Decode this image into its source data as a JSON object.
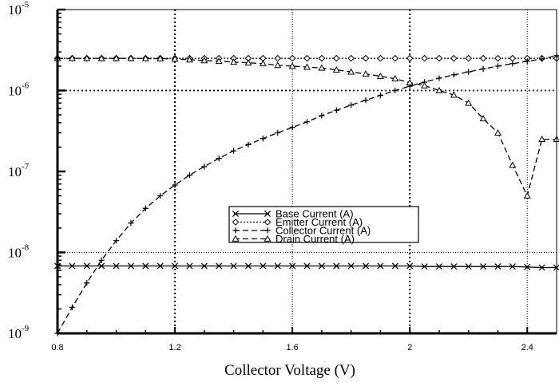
{
  "chart_data": {
    "type": "line",
    "title": "",
    "xlabel": "Collector Voltage (V)",
    "ylabel": "",
    "yscale": "log",
    "xlim": [
      0.8,
      2.5
    ],
    "ylim": [
      1e-09,
      1e-05
    ],
    "x_ticks": [
      0.8,
      1.2,
      1.6,
      2,
      2.4
    ],
    "x_tick_labels": [
      "0.8",
      "1.2",
      "1.6",
      "2",
      "2.4"
    ],
    "y_ticks": [
      {
        "base": "10",
        "exp": "-9",
        "value": 1e-09
      },
      {
        "base": "10",
        "exp": "-8",
        "value": 1e-08
      },
      {
        "base": "10",
        "exp": "-7",
        "value": 1e-07
      },
      {
        "base": "10",
        "exp": "-6",
        "value": 1e-06
      },
      {
        "base": "10",
        "exp": "-5",
        "value": 1e-05
      }
    ],
    "grid": "dotted at x=1.2, 1.6, 2, 2.4 and y=1e-8, 1e-6",
    "legend_position": "center-right",
    "x": [
      0.8,
      0.85,
      0.9,
      0.95,
      1.0,
      1.05,
      1.1,
      1.15,
      1.2,
      1.25,
      1.3,
      1.35,
      1.4,
      1.45,
      1.5,
      1.55,
      1.6,
      1.65,
      1.7,
      1.75,
      1.8,
      1.85,
      1.9,
      1.95,
      2.0,
      2.05,
      2.1,
      2.15,
      2.2,
      2.25,
      2.3,
      2.35,
      2.4,
      2.45,
      2.5
    ],
    "series": [
      {
        "name": "Base Current (A)",
        "marker": "x",
        "dash": "solid",
        "values": [
          6.8e-09,
          6.8e-09,
          6.8e-09,
          6.8e-09,
          6.8e-09,
          6.8e-09,
          6.8e-09,
          6.8e-09,
          6.8e-09,
          6.8e-09,
          6.8e-09,
          6.8e-09,
          6.8e-09,
          6.8e-09,
          6.8e-09,
          6.8e-09,
          6.8e-09,
          6.8e-09,
          6.8e-09,
          6.8e-09,
          6.8e-09,
          6.8e-09,
          6.8e-09,
          6.8e-09,
          6.8e-09,
          6.7e-09,
          6.7e-09,
          6.7e-09,
          6.7e-09,
          6.7e-09,
          6.7e-09,
          6.7e-09,
          6.6e-09,
          6.5e-09,
          6.5e-09
        ]
      },
      {
        "name": "Emitter Current (A)",
        "marker": "diamond",
        "dash": "dotted",
        "values": [
          2.5e-06,
          2.5e-06,
          2.5e-06,
          2.5e-06,
          2.5e-06,
          2.5e-06,
          2.5e-06,
          2.5e-06,
          2.5e-06,
          2.5e-06,
          2.5e-06,
          2.5e-06,
          2.5e-06,
          2.5e-06,
          2.5e-06,
          2.5e-06,
          2.5e-06,
          2.5e-06,
          2.5e-06,
          2.5e-06,
          2.5e-06,
          2.5e-06,
          2.5e-06,
          2.5e-06,
          2.5e-06,
          2.5e-06,
          2.5e-06,
          2.5e-06,
          2.5e-06,
          2.5e-06,
          2.5e-06,
          2.5e-06,
          2.5e-06,
          2.5e-06,
          2.5e-06
        ]
      },
      {
        "name": "Collector Current (A)",
        "marker": "plus",
        "dash": "dashed",
        "values": [
          1e-09,
          2.1e-09,
          4.2e-09,
          8e-09,
          1.4e-08,
          2.3e-08,
          3.5e-08,
          5e-08,
          6.8e-08,
          9e-08,
          1.15e-07,
          1.45e-07,
          1.8e-07,
          2.15e-07,
          2.55e-07,
          3e-07,
          3.5e-07,
          4.1e-07,
          4.9e-07,
          5.7e-07,
          6.6e-07,
          7.6e-07,
          8.7e-07,
          1e-06,
          1.13e-06,
          1.27e-06,
          1.42e-06,
          1.56e-06,
          1.7e-06,
          1.85e-06,
          2e-06,
          2.15e-06,
          2.3e-06,
          2.45e-06,
          2.7e-06
        ]
      },
      {
        "name": "Drain Current (A)",
        "marker": "triangle",
        "dash": "dashed",
        "values": [
          2.5e-06,
          2.5e-06,
          2.5e-06,
          2.5e-06,
          2.5e-06,
          2.5e-06,
          2.49e-06,
          2.48e-06,
          2.45e-06,
          2.4e-06,
          2.35e-06,
          2.3e-06,
          2.25e-06,
          2.2e-06,
          2.15e-06,
          2.05e-06,
          2e-06,
          1.95e-06,
          1.9e-06,
          1.8e-06,
          1.7e-06,
          1.6e-06,
          1.5e-06,
          1.4e-06,
          1.25e-06,
          1.15e-06,
          1e-06,
          8.8e-07,
          7e-07,
          4.5e-07,
          3e-07,
          1.2e-07,
          5e-08,
          2.5e-07,
          2.5e-07
        ]
      }
    ]
  }
}
